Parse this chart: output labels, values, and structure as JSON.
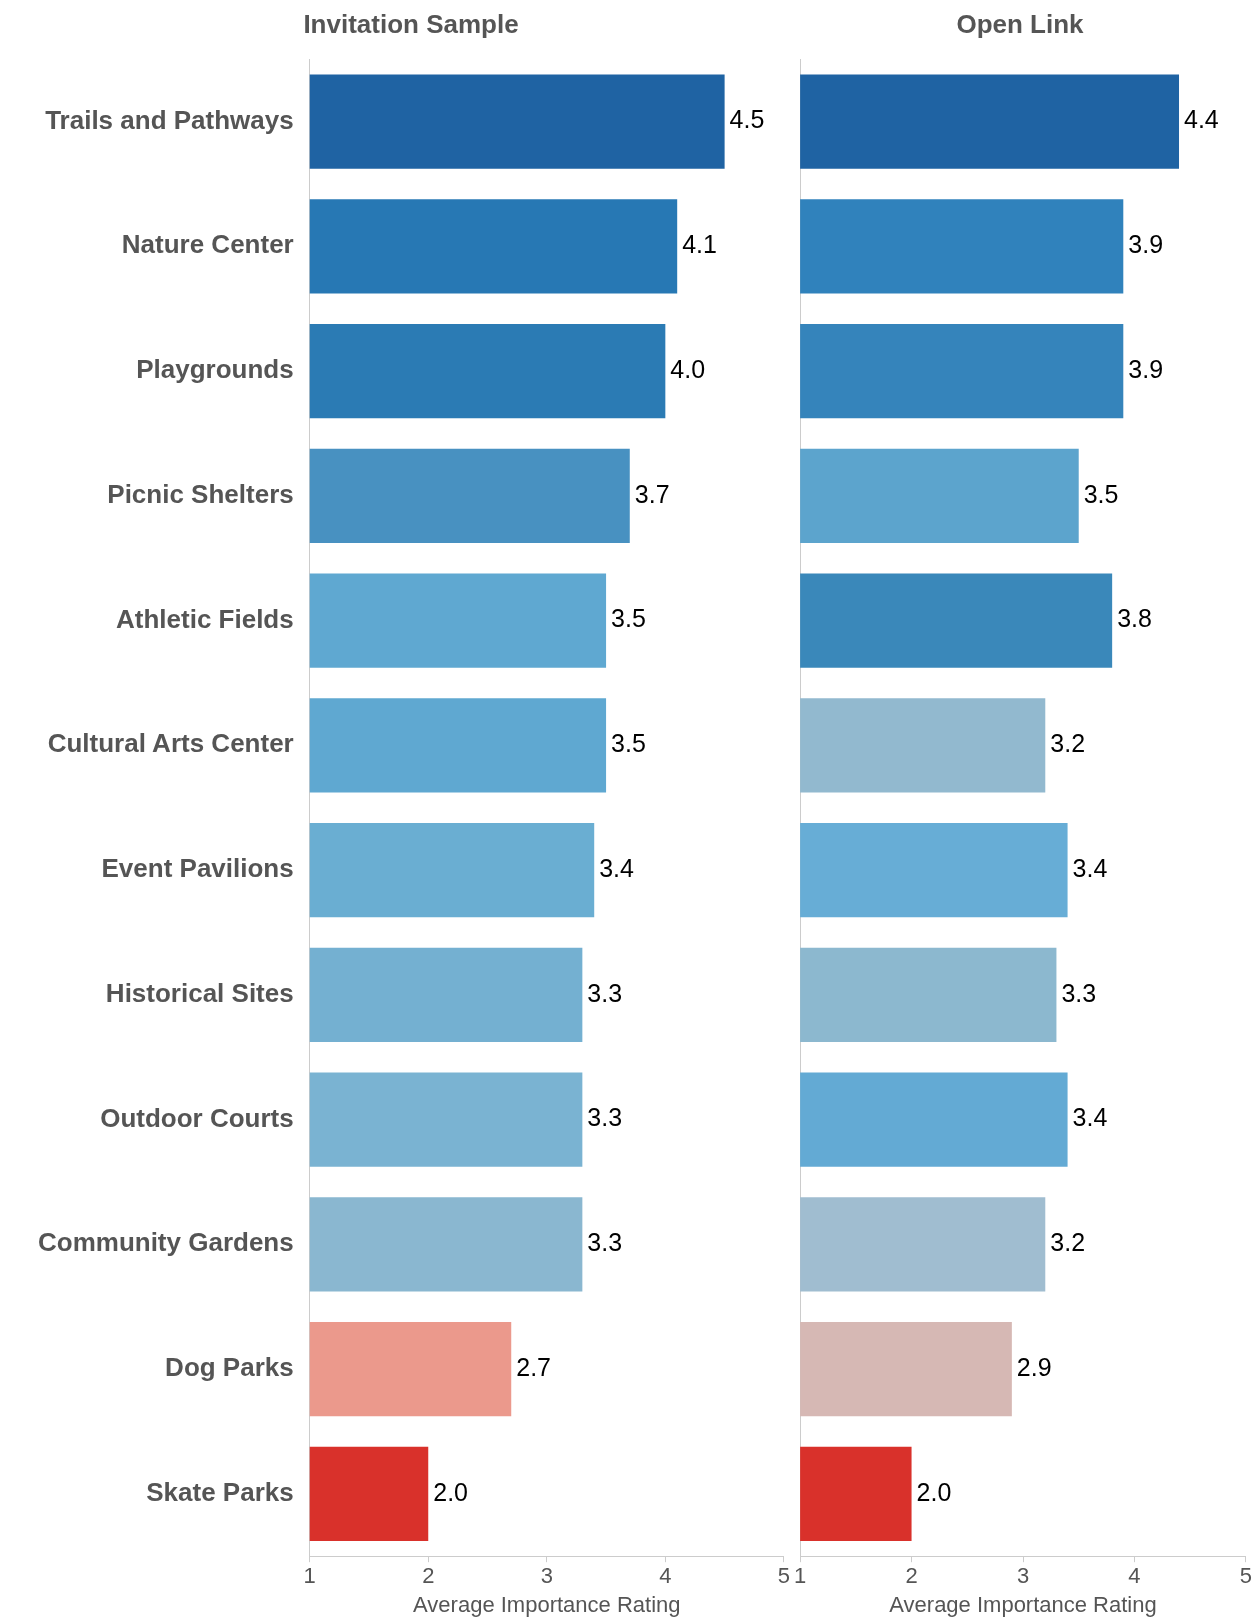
{
  "chart_data": [
    {
      "type": "bar",
      "orientation": "horizontal",
      "title": "Invitation Sample",
      "xlabel": "Average Importance Rating",
      "categories": [
        "Trails and Pathways",
        "Nature Center",
        "Playgrounds",
        "Picnic Shelters",
        "Athletic Fields",
        "Cultural Arts Center",
        "Event Pavilions",
        "Historical Sites",
        "Outdoor Courts",
        "Community Gardens",
        "Dog Parks",
        "Skate Parks"
      ],
      "values": [
        4.5,
        4.1,
        4.0,
        3.7,
        3.5,
        3.5,
        3.4,
        3.3,
        3.3,
        3.3,
        2.7,
        2.0
      ],
      "colors": [
        "#1f63a3",
        "#2778b4",
        "#2b7bb4",
        "#4891c1",
        "#5fa8d1",
        "#5fa8d1",
        "#6aaed2",
        "#74b0d1",
        "#7ab3d2",
        "#8ab7d0",
        "#eb998c",
        "#d9312b"
      ],
      "value_labels": [
        "4.5",
        "4.1",
        "4.0",
        "3.7",
        "3.5",
        "3.5",
        "3.4",
        "3.3",
        "3.3",
        "3.3",
        "2.7",
        "2.0"
      ],
      "xlim": [
        1,
        5
      ],
      "xticks": [
        1,
        2,
        3,
        4,
        5
      ],
      "grid": false,
      "legend": false
    },
    {
      "type": "bar",
      "orientation": "horizontal",
      "title": "Open Link",
      "xlabel": "Average Importance Rating",
      "categories": [
        null,
        null,
        null,
        null,
        null,
        null,
        null,
        null,
        null,
        null,
        null,
        null
      ],
      "values": [
        4.4,
        3.9,
        3.9,
        3.5,
        3.8,
        3.2,
        3.4,
        3.3,
        3.4,
        3.2,
        2.9,
        2.0
      ],
      "colors": [
        "#1f63a3",
        "#3082bc",
        "#3584bb",
        "#5ca4cd",
        "#3a88ba",
        "#92b9cf",
        "#67add6",
        "#8cb8cf",
        "#63aad4",
        "#a0bdd0",
        "#d6b8b4",
        "#d9312b"
      ],
      "value_labels": [
        "4.4",
        "3.9",
        "3.9",
        "3.5",
        "3.8",
        "3.2",
        "3.4",
        "3.3",
        "3.4",
        "3.2",
        "2.9",
        "2.0"
      ],
      "xlim": [
        1,
        5
      ],
      "xticks": [
        1,
        2,
        3,
        4,
        5
      ],
      "grid": false,
      "legend": false
    }
  ]
}
